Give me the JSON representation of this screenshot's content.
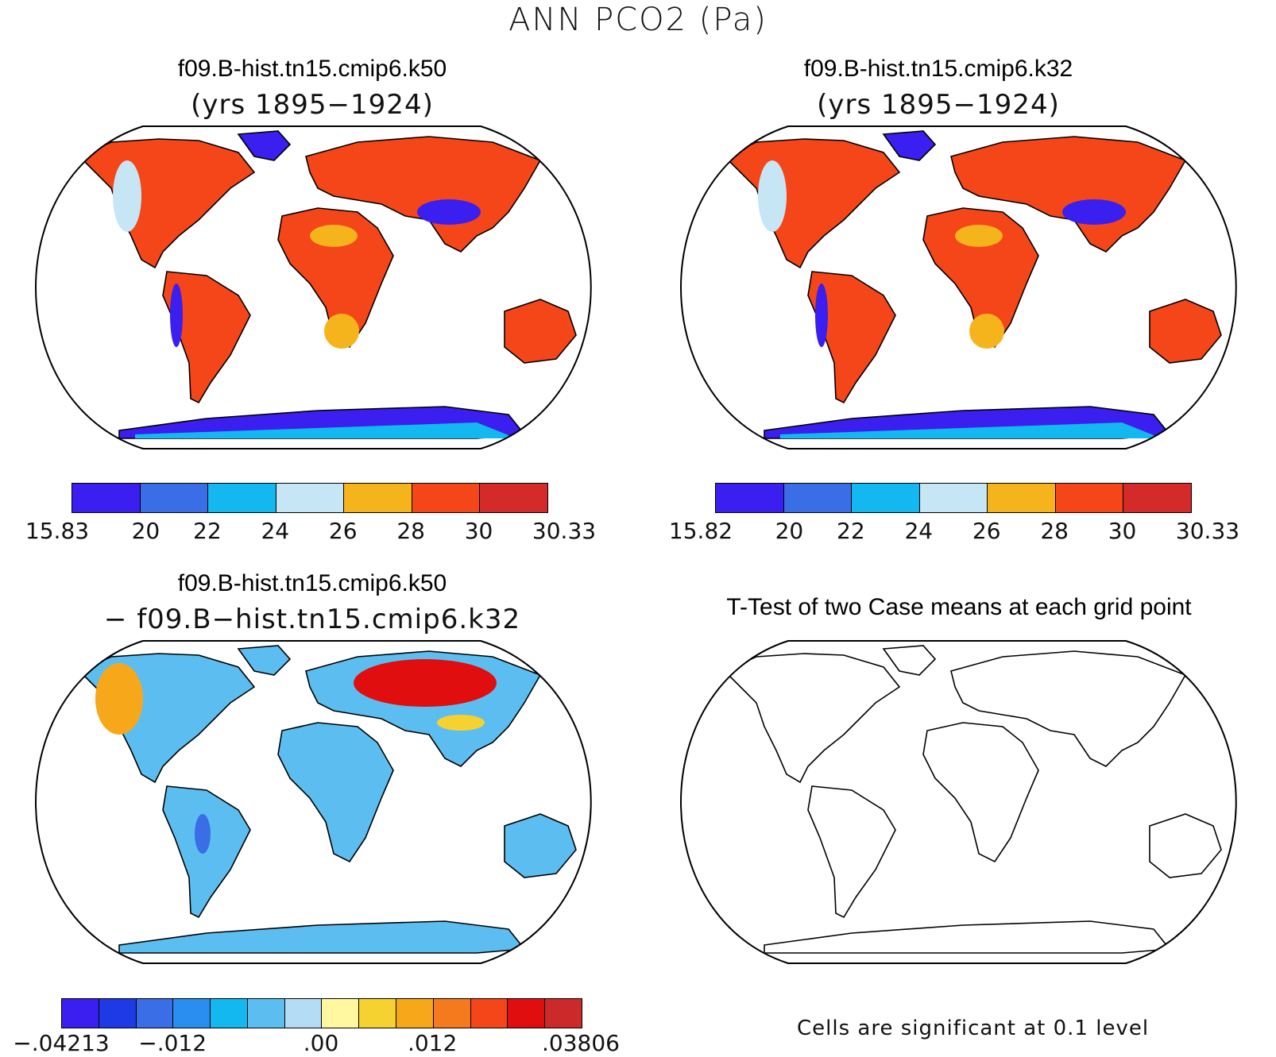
{
  "title": "ANN PCO2 (Pa)",
  "panels": {
    "top_left": {
      "case": "f09.B-hist.tn15.cmip6.k50",
      "years": "(yrs 1895−1924)",
      "colorbar": {
        "colors": [
          "#3b1ef0",
          "#3a6ee6",
          "#14b8f0",
          "#c6e6f6",
          "#f6b41c",
          "#f5461a",
          "#d42a2a"
        ],
        "labels": [
          "15.83",
          "20",
          "22",
          "24",
          "26",
          "28",
          "30",
          "30.33"
        ]
      }
    },
    "top_right": {
      "case": "f09.B-hist.tn15.cmip6.k32",
      "years": "(yrs 1895−1924)",
      "colorbar": {
        "colors": [
          "#3b1ef0",
          "#3a6ee6",
          "#14b8f0",
          "#c6e6f6",
          "#f6b41c",
          "#f5461a",
          "#d42a2a"
        ],
        "labels": [
          "15.82",
          "20",
          "22",
          "24",
          "26",
          "28",
          "30",
          "30.33"
        ]
      }
    },
    "bottom_left": {
      "case": "f09.B-hist.tn15.cmip6.k50",
      "minus_case": "− f09.B−hist.tn15.cmip6.k32",
      "colorbar": {
        "colors": [
          "#3b1ef0",
          "#1e3ae6",
          "#3a6ee6",
          "#2a8ef0",
          "#14b8f0",
          "#5cbef0",
          "#b4dcf4",
          "#fff8a0",
          "#f6d230",
          "#f6a81a",
          "#f57a1e",
          "#f5461a",
          "#e00e0e",
          "#cc2a2a"
        ],
        "labels": [
          "−.04213",
          "−.012",
          ".00",
          ".012",
          ".03806"
        ]
      }
    },
    "bottom_right": {
      "title": "T-Test of two Case means at each grid point",
      "note": "Cells are significant at 0.1 level"
    }
  },
  "map_style": {
    "ocean": "#ffffff",
    "coast": "#000000",
    "field_colors": {
      "low": "#3b1ef0",
      "mid_low": "#14b8f0",
      "pale": "#c6e6f6",
      "mid": "#f6b41c",
      "high": "#f5461a",
      "diff_neg": "#5cbef0",
      "diff_pos": "#e00e0e"
    }
  }
}
